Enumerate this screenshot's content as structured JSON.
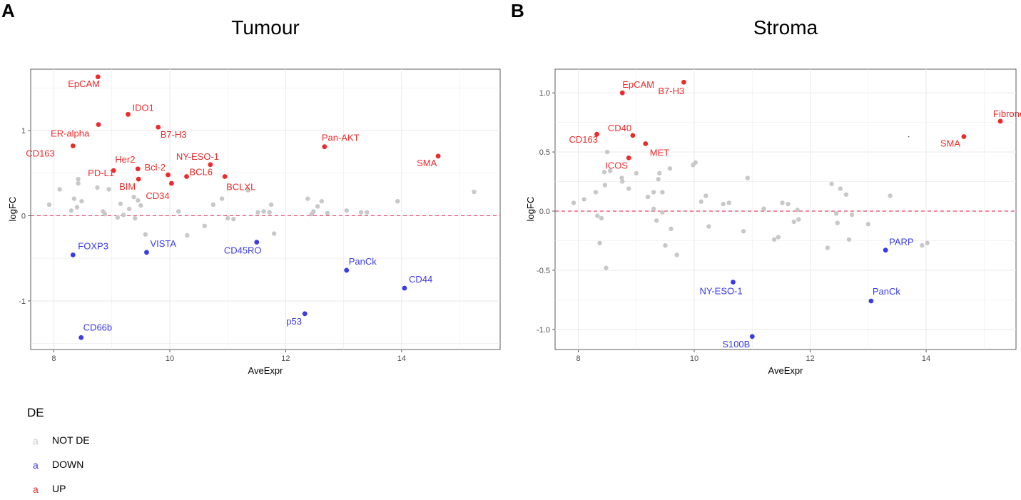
{
  "colors": {
    "NOT DE": "#c8c8c8",
    "DOWN": "#3a3ae8",
    "UP": "#ee2b2b",
    "zero_line": "#e0486b",
    "grid": "#ebebeb",
    "border": "#333333"
  },
  "legend": {
    "title": "DE",
    "key_glyph": "a",
    "items": [
      {
        "label": "NOT DE",
        "group": "NOT DE"
      },
      {
        "label": "DOWN",
        "group": "DOWN"
      },
      {
        "label": "UP",
        "group": "UP"
      }
    ]
  },
  "chart_data": [
    {
      "panel": "A",
      "type": "scatter",
      "title": "Tumour",
      "xlabel": "AveExpr",
      "ylabel": "logFC",
      "xlim": [
        7.6,
        15.7
      ],
      "ylim": [
        -1.57,
        1.72
      ],
      "x_ticks": [
        8,
        10,
        12,
        14
      ],
      "y_ticks": [
        -1,
        0,
        1
      ],
      "y_tick_labels": [
        "-1",
        "0",
        "1"
      ],
      "x_grid_minor": [
        9,
        11,
        13,
        15
      ],
      "y_grid_minor": [
        -1.5,
        -0.5,
        0.5,
        1.5
      ],
      "hline": 0,
      "labeled_points": [
        {
          "label": "EpCAM",
          "x": 8.76,
          "y": 1.63,
          "group": "UP"
        },
        {
          "label": "IDO1",
          "x": 9.28,
          "y": 1.19,
          "group": "UP"
        },
        {
          "label": "ER-alpha",
          "x": 8.77,
          "y": 1.07,
          "group": "UP"
        },
        {
          "label": "B7-H3",
          "x": 9.8,
          "y": 1.04,
          "group": "UP"
        },
        {
          "label": "CD163",
          "x": 8.33,
          "y": 0.82,
          "group": "UP"
        },
        {
          "label": "Pan-AKT",
          "x": 12.67,
          "y": 0.81,
          "group": "UP"
        },
        {
          "label": "SMA",
          "x": 14.63,
          "y": 0.7,
          "group": "UP"
        },
        {
          "label": "NY-ESO-1",
          "x": 10.7,
          "y": 0.6,
          "group": "UP"
        },
        {
          "label": "Her2",
          "x": 9.45,
          "y": 0.55,
          "group": "UP"
        },
        {
          "label": "PD-L1",
          "x": 9.03,
          "y": 0.53,
          "group": "UP"
        },
        {
          "label": "Bcl-2",
          "x": 9.97,
          "y": 0.48,
          "group": "UP"
        },
        {
          "label": "BCL6",
          "x": 10.29,
          "y": 0.46,
          "group": "UP"
        },
        {
          "label": "BCLXL",
          "x": 10.95,
          "y": 0.46,
          "group": "UP"
        },
        {
          "label": "BIM",
          "x": 9.46,
          "y": 0.43,
          "group": "UP"
        },
        {
          "label": "CD34",
          "x": 10.03,
          "y": 0.38,
          "group": "UP"
        },
        {
          "label": "FOXP3",
          "x": 8.33,
          "y": -0.46,
          "group": "DOWN"
        },
        {
          "label": "VISTA",
          "x": 9.6,
          "y": -0.43,
          "group": "DOWN"
        },
        {
          "label": "CD45RO",
          "x": 11.5,
          "y": -0.31,
          "group": "DOWN"
        },
        {
          "label": "PanCk",
          "x": 13.05,
          "y": -0.64,
          "group": "DOWN"
        },
        {
          "label": "CD44",
          "x": 14.05,
          "y": -0.85,
          "group": "DOWN"
        },
        {
          "label": "p53",
          "x": 12.33,
          "y": -1.15,
          "group": "DOWN"
        },
        {
          "label": "CD66b",
          "x": 8.47,
          "y": -1.43,
          "group": "DOWN"
        }
      ],
      "other_points": {
        "group": "NOT DE",
        "xy": [
          [
            7.92,
            0.13
          ],
          [
            8.1,
            0.31
          ],
          [
            8.3,
            0.06
          ],
          [
            8.35,
            0.2
          ],
          [
            8.4,
            0.1
          ],
          [
            8.42,
            0.38
          ],
          [
            8.42,
            0.43
          ],
          [
            8.48,
            0.17
          ],
          [
            8.75,
            0.33
          ],
          [
            8.85,
            0.05
          ],
          [
            8.88,
            0.02
          ],
          [
            8.95,
            0.31
          ],
          [
            9.1,
            -0.02
          ],
          [
            9.15,
            0.14
          ],
          [
            9.2,
            0.01
          ],
          [
            9.3,
            0.08
          ],
          [
            9.38,
            0.22
          ],
          [
            9.4,
            -0.03
          ],
          [
            9.45,
            0.18
          ],
          [
            9.5,
            0.12
          ],
          [
            9.58,
            -0.22
          ],
          [
            10.15,
            0.05
          ],
          [
            10.3,
            -0.23
          ],
          [
            10.6,
            -0.12
          ],
          [
            10.75,
            0.13
          ],
          [
            10.9,
            0.2
          ],
          [
            11.1,
            -0.04
          ],
          [
            11.35,
            0.3
          ],
          [
            11.52,
            0.04
          ],
          [
            11.62,
            0.05
          ],
          [
            11.75,
            0.13
          ],
          [
            11.8,
            -0.21
          ],
          [
            11.72,
            0.04
          ],
          [
            12.38,
            0.2
          ],
          [
            12.45,
            0.02
          ],
          [
            12.48,
            0.05
          ],
          [
            12.55,
            0.11
          ],
          [
            12.62,
            0.17
          ],
          [
            12.72,
            0.03
          ],
          [
            13.05,
            0.06
          ],
          [
            13.3,
            0.04
          ],
          [
            13.4,
            0.04
          ],
          [
            13.93,
            0.17
          ],
          [
            15.25,
            0.28
          ],
          [
            11.0,
            -0.03
          ]
        ]
      }
    },
    {
      "panel": "B",
      "type": "scatter",
      "title": "Stroma",
      "xlabel": "AveExpr",
      "ylabel": "logFC",
      "xlim": [
        7.6,
        15.55
      ],
      "ylim": [
        -1.17,
        1.2
      ],
      "x_ticks": [
        8,
        10,
        12,
        14
      ],
      "y_ticks": [
        -1.0,
        -0.5,
        0.0,
        0.5,
        1.0
      ],
      "y_tick_labels": [
        "-1.0",
        "-0.5",
        "0.0",
        "0.5",
        "1.0"
      ],
      "x_grid_minor": [
        9,
        11,
        13,
        15
      ],
      "y_grid_minor": [
        -0.75,
        -0.25,
        0.25,
        0.75
      ],
      "hline": 0,
      "labeled_points": [
        {
          "label": "EpCAM",
          "x": 8.76,
          "y": 1.0,
          "group": "UP"
        },
        {
          "label": "B7-H3",
          "x": 9.82,
          "y": 1.09,
          "group": "UP"
        },
        {
          "label": "CD40",
          "x": 8.94,
          "y": 0.64,
          "group": "UP"
        },
        {
          "label": "CD163",
          "x": 8.32,
          "y": 0.65,
          "group": "UP"
        },
        {
          "label": "MET",
          "x": 9.16,
          "y": 0.57,
          "group": "UP"
        },
        {
          "label": "ICOS",
          "x": 8.87,
          "y": 0.45,
          "group": "UP"
        },
        {
          "label": "Fibronectin",
          "x": 15.28,
          "y": 0.76,
          "group": "UP"
        },
        {
          "label": "SMA",
          "x": 14.65,
          "y": 0.63,
          "group": "UP"
        },
        {
          "label": "PARP",
          "x": 13.3,
          "y": -0.33,
          "group": "DOWN"
        },
        {
          "label": "NY-ESO-1",
          "x": 10.67,
          "y": -0.6,
          "group": "DOWN"
        },
        {
          "label": "PanCk",
          "x": 13.05,
          "y": -0.76,
          "group": "DOWN"
        },
        {
          "label": "S100B",
          "x": 11.0,
          "y": -1.06,
          "group": "DOWN"
        }
      ],
      "other_points": {
        "group": "NOT DE",
        "xy": [
          [
            7.92,
            0.07
          ],
          [
            8.1,
            0.1
          ],
          [
            8.3,
            0.16
          ],
          [
            8.33,
            -0.04
          ],
          [
            8.37,
            -0.27
          ],
          [
            8.4,
            -0.06
          ],
          [
            8.45,
            0.33
          ],
          [
            8.46,
            0.22
          ],
          [
            8.48,
            -0.48
          ],
          [
            8.5,
            0.5
          ],
          [
            8.55,
            0.34
          ],
          [
            8.75,
            0.28
          ],
          [
            8.76,
            0.25
          ],
          [
            8.87,
            0.19
          ],
          [
            9.0,
            0.32
          ],
          [
            9.2,
            0.12
          ],
          [
            9.3,
            0.16
          ],
          [
            9.3,
            0.02
          ],
          [
            9.35,
            -0.08
          ],
          [
            9.38,
            0.27
          ],
          [
            9.4,
            0.32
          ],
          [
            9.45,
            0.16
          ],
          [
            9.45,
            -0.01
          ],
          [
            9.5,
            -0.29
          ],
          [
            9.58,
            0.36
          ],
          [
            9.6,
            -0.15
          ],
          [
            9.7,
            -0.37
          ],
          [
            9.98,
            0.39
          ],
          [
            10.02,
            0.41
          ],
          [
            10.12,
            0.08
          ],
          [
            10.2,
            0.13
          ],
          [
            10.25,
            -0.13
          ],
          [
            10.5,
            0.06
          ],
          [
            10.6,
            0.07
          ],
          [
            10.85,
            -0.17
          ],
          [
            10.92,
            0.28
          ],
          [
            11.2,
            0.02
          ],
          [
            11.38,
            -0.24
          ],
          [
            11.45,
            -0.22
          ],
          [
            11.52,
            0.07
          ],
          [
            11.62,
            0.06
          ],
          [
            11.72,
            -0.09
          ],
          [
            11.78,
            0.01
          ],
          [
            11.8,
            -0.07
          ],
          [
            12.3,
            -0.31
          ],
          [
            12.37,
            0.23
          ],
          [
            12.45,
            -0.02
          ],
          [
            12.47,
            -0.1
          ],
          [
            12.52,
            0.19
          ],
          [
            12.62,
            0.14
          ],
          [
            12.67,
            -0.24
          ],
          [
            12.72,
            -0.03
          ],
          [
            13.0,
            -0.11
          ],
          [
            13.38,
            0.13
          ],
          [
            13.93,
            -0.29
          ],
          [
            14.02,
            -0.27
          ]
        ]
      },
      "stray_mark": {
        "x": 13.7,
        "y": 0.63
      }
    }
  ]
}
